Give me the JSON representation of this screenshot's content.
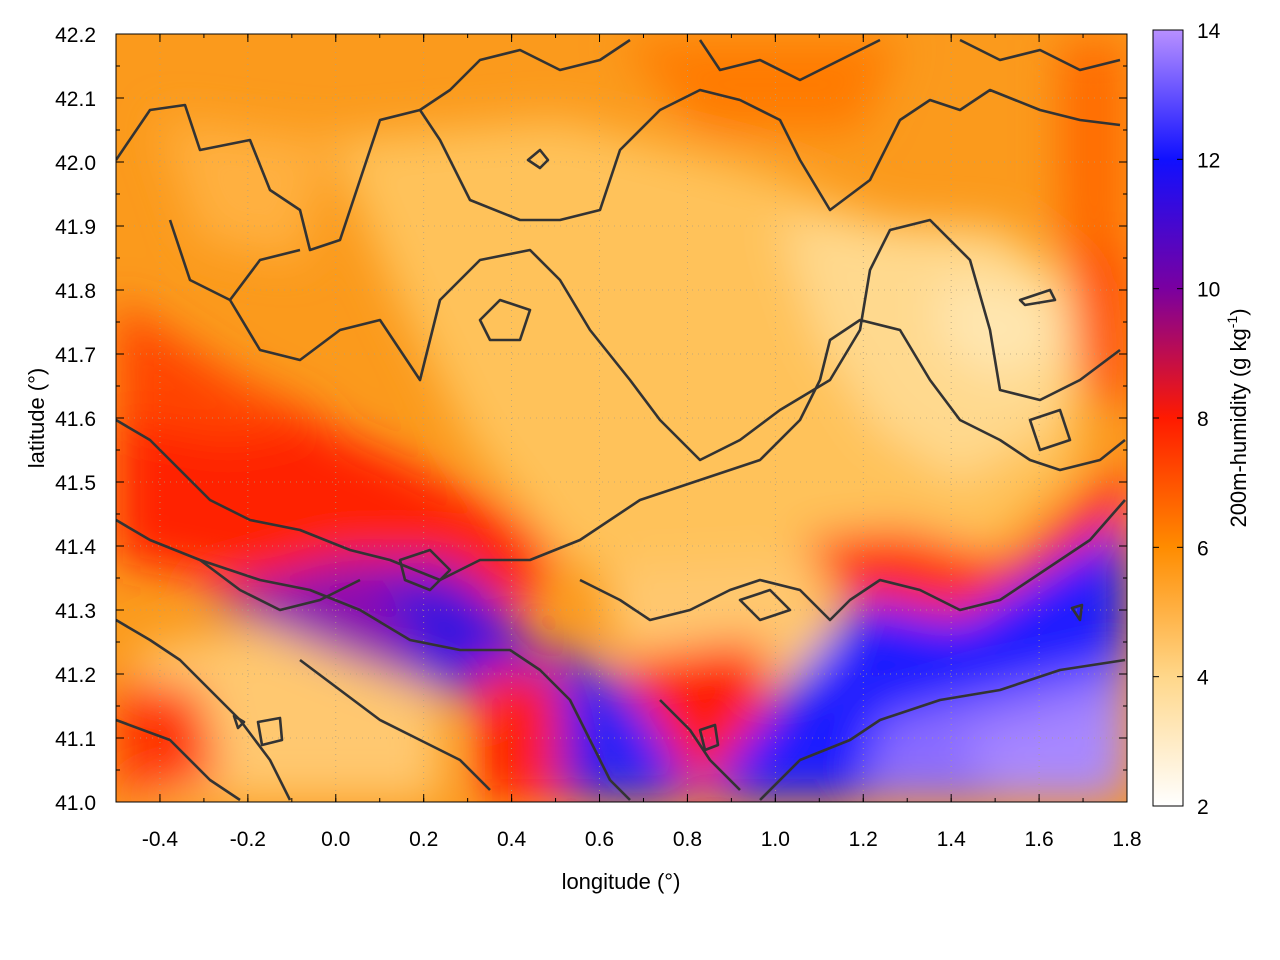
{
  "chart_data": {
    "type": "heatmap",
    "title": "",
    "xlabel": "longitude (°)",
    "ylabel": "latitude (°)",
    "colorbar_label": "200m-humidity (g kg-1)",
    "colorbar_label_main": "200m-humidity (g kg",
    "colorbar_label_sup": "-1",
    "colorbar_label_close": ")",
    "xlim": [
      -0.5,
      1.8
    ],
    "ylim": [
      41.0,
      42.2
    ],
    "clim": [
      2,
      14
    ],
    "x_ticks": [
      "-0.4",
      "-0.2",
      "0.0",
      "0.2",
      "0.4",
      "0.6",
      "0.8",
      "1.0",
      "1.2",
      "1.4",
      "1.6",
      "1.8"
    ],
    "y_ticks": [
      "41.0",
      "41.1",
      "41.2",
      "41.3",
      "41.4",
      "41.5",
      "41.6",
      "41.7",
      "41.8",
      "41.9",
      "42.0",
      "42.1",
      "42.2"
    ],
    "colorbar_ticks": [
      "2",
      "4",
      "6",
      "8",
      "10",
      "12",
      "14"
    ],
    "grid": true,
    "colormap": [
      {
        "value": 2,
        "color": "#ffffff"
      },
      {
        "value": 4,
        "color": "#ffd78a"
      },
      {
        "value": 6,
        "color": "#ff8c00"
      },
      {
        "value": 8,
        "color": "#ff1a00"
      },
      {
        "value": 10,
        "color": "#7a00a0"
      },
      {
        "value": 12,
        "color": "#1010ff"
      },
      {
        "value": 14,
        "color": "#b890ff"
      }
    ],
    "humidity_field_approx": {
      "description_points": [
        {
          "lon": -0.45,
          "lat": 42.1,
          "value": 5.5
        },
        {
          "lon": 0.0,
          "lat": 42.1,
          "value": 5.5
        },
        {
          "lon": 0.5,
          "lat": 41.8,
          "value": 4.5
        },
        {
          "lon": 1.0,
          "lat": 41.9,
          "value": 4.0
        },
        {
          "lon": 1.5,
          "lat": 41.8,
          "value": 3.5
        },
        {
          "lon": 1.75,
          "lat": 42.05,
          "value": 6.5
        },
        {
          "lon": -0.3,
          "lat": 41.55,
          "value": 7.5
        },
        {
          "lon": 0.0,
          "lat": 41.5,
          "value": 7.8
        },
        {
          "lon": 0.25,
          "lat": 41.3,
          "value": 9.5
        },
        {
          "lon": 0.55,
          "lat": 41.15,
          "value": 11.5
        },
        {
          "lon": 0.65,
          "lat": 41.05,
          "value": 12.0
        },
        {
          "lon": 1.2,
          "lat": 41.2,
          "value": 12.0
        },
        {
          "lon": 1.5,
          "lat": 41.1,
          "value": 12.8
        },
        {
          "lon": 1.7,
          "lat": 41.2,
          "value": 12.5
        },
        {
          "lon": 0.9,
          "lat": 41.35,
          "value": 4.5
        },
        {
          "lon": 0.0,
          "lat": 41.1,
          "value": 4.0
        },
        {
          "lon": -0.4,
          "lat": 41.2,
          "value": 5.5
        }
      ]
    }
  }
}
